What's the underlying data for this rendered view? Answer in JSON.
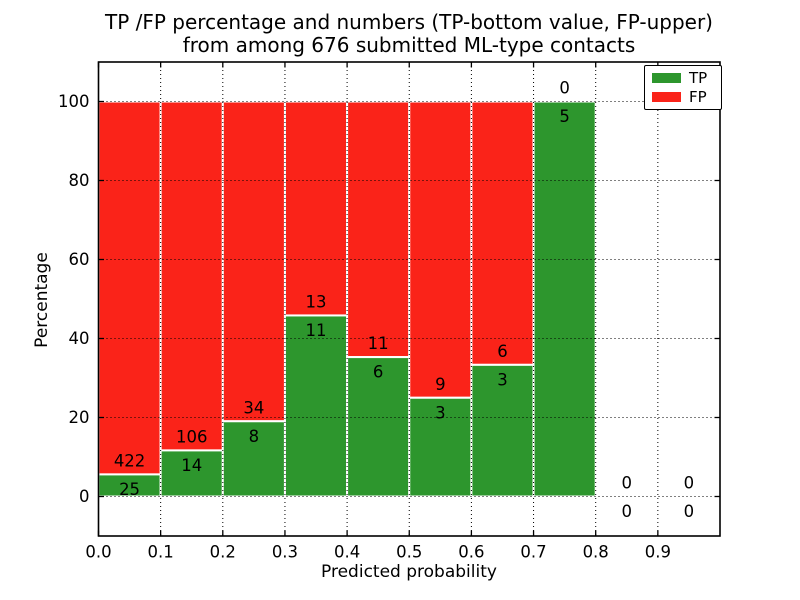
{
  "title": {
    "line1": "TP /FP percentage and numbers (TP-bottom value, FP-upper)",
    "line2": "from among 676 submitted ML-type contacts"
  },
  "chart_data": {
    "type": "bar",
    "stacked": true,
    "orientation": "vertical",
    "title": "TP /FP percentage and numbers (TP-bottom value, FP-upper) from among 676 submitted ML-type contacts",
    "xlabel": "Predicted probability",
    "ylabel": "Percentage",
    "total_contacts": 676,
    "bin_edges": [
      0.0,
      0.1,
      0.2,
      0.3,
      0.4,
      0.5,
      0.6,
      0.7,
      0.8,
      0.9,
      1.0
    ],
    "series": [
      {
        "name": "TP",
        "color": "#2d962d",
        "counts": [
          25,
          14,
          8,
          11,
          6,
          3,
          3,
          5,
          0,
          0
        ]
      },
      {
        "name": "FP",
        "color": "#fa2319",
        "counts": [
          422,
          106,
          34,
          13,
          11,
          9,
          6,
          0,
          0,
          0
        ]
      }
    ],
    "tp_percent_of_bin": [
      5.6,
      11.7,
      19.0,
      45.8,
      35.3,
      25.0,
      33.3,
      100.0,
      0.0,
      0.0
    ],
    "xlim": [
      0.0,
      1.0
    ],
    "ylim": [
      -10,
      110
    ],
    "xticks": [
      "0.0",
      "0.1",
      "0.2",
      "0.3",
      "0.4",
      "0.5",
      "0.6",
      "0.7",
      "0.8",
      "0.9"
    ],
    "yticks": [
      "0",
      "20",
      "40",
      "60",
      "80",
      "100"
    ],
    "grid": "dotted black, on top of bars",
    "bar_edge_color": "#ffffff",
    "frame_color": "#000000",
    "legend": {
      "position": "upper right",
      "items": [
        {
          "label": "TP",
          "color": "#2d962d"
        },
        {
          "label": "FP",
          "color": "#fa2319"
        }
      ]
    }
  }
}
